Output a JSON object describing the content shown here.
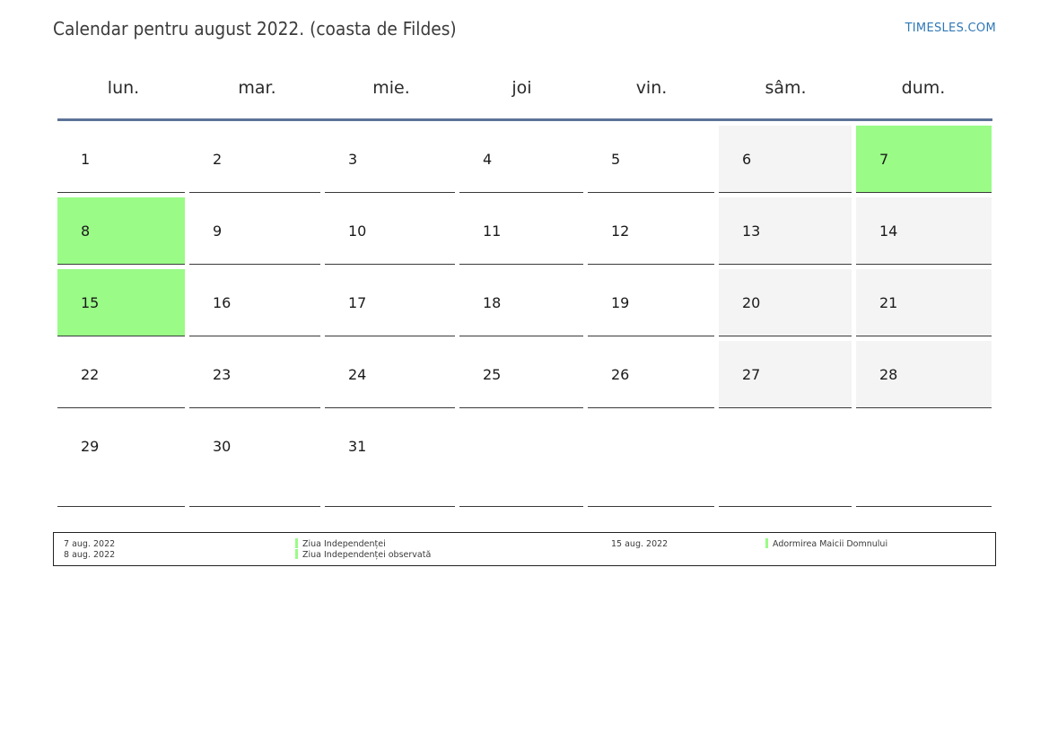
{
  "header": {
    "title": "Calendar pentru august 2022. (coasta de Fildes)",
    "brand": "TIMESLES.COM"
  },
  "weekdays": [
    "lun.",
    "mar.",
    "mie.",
    "joi",
    "vin.",
    "sâm.",
    "dum."
  ],
  "weeks": [
    [
      "1",
      "2",
      "3",
      "4",
      "5",
      "6",
      "7"
    ],
    [
      "8",
      "9",
      "10",
      "11",
      "12",
      "13",
      "14"
    ],
    [
      "15",
      "16",
      "17",
      "18",
      "19",
      "20",
      "21"
    ],
    [
      "22",
      "23",
      "24",
      "25",
      "26",
      "27",
      "28"
    ],
    [
      "29",
      "30",
      "31",
      "",
      "",
      "",
      ""
    ]
  ],
  "holiday_days": [
    "7",
    "8",
    "15"
  ],
  "legend": [
    {
      "date": "7 aug. 2022",
      "name": "Ziua Independenței"
    },
    {
      "date": "8 aug. 2022",
      "name": "Ziua Independenței observată"
    },
    {
      "date": "15 aug. 2022",
      "name": "Adormirea Maicii Domnului"
    }
  ],
  "colors": {
    "holiday": "#9afb87",
    "weekend": "#f4f4f4",
    "header_rule": "#5c7397",
    "brand": "#2f78b7"
  }
}
